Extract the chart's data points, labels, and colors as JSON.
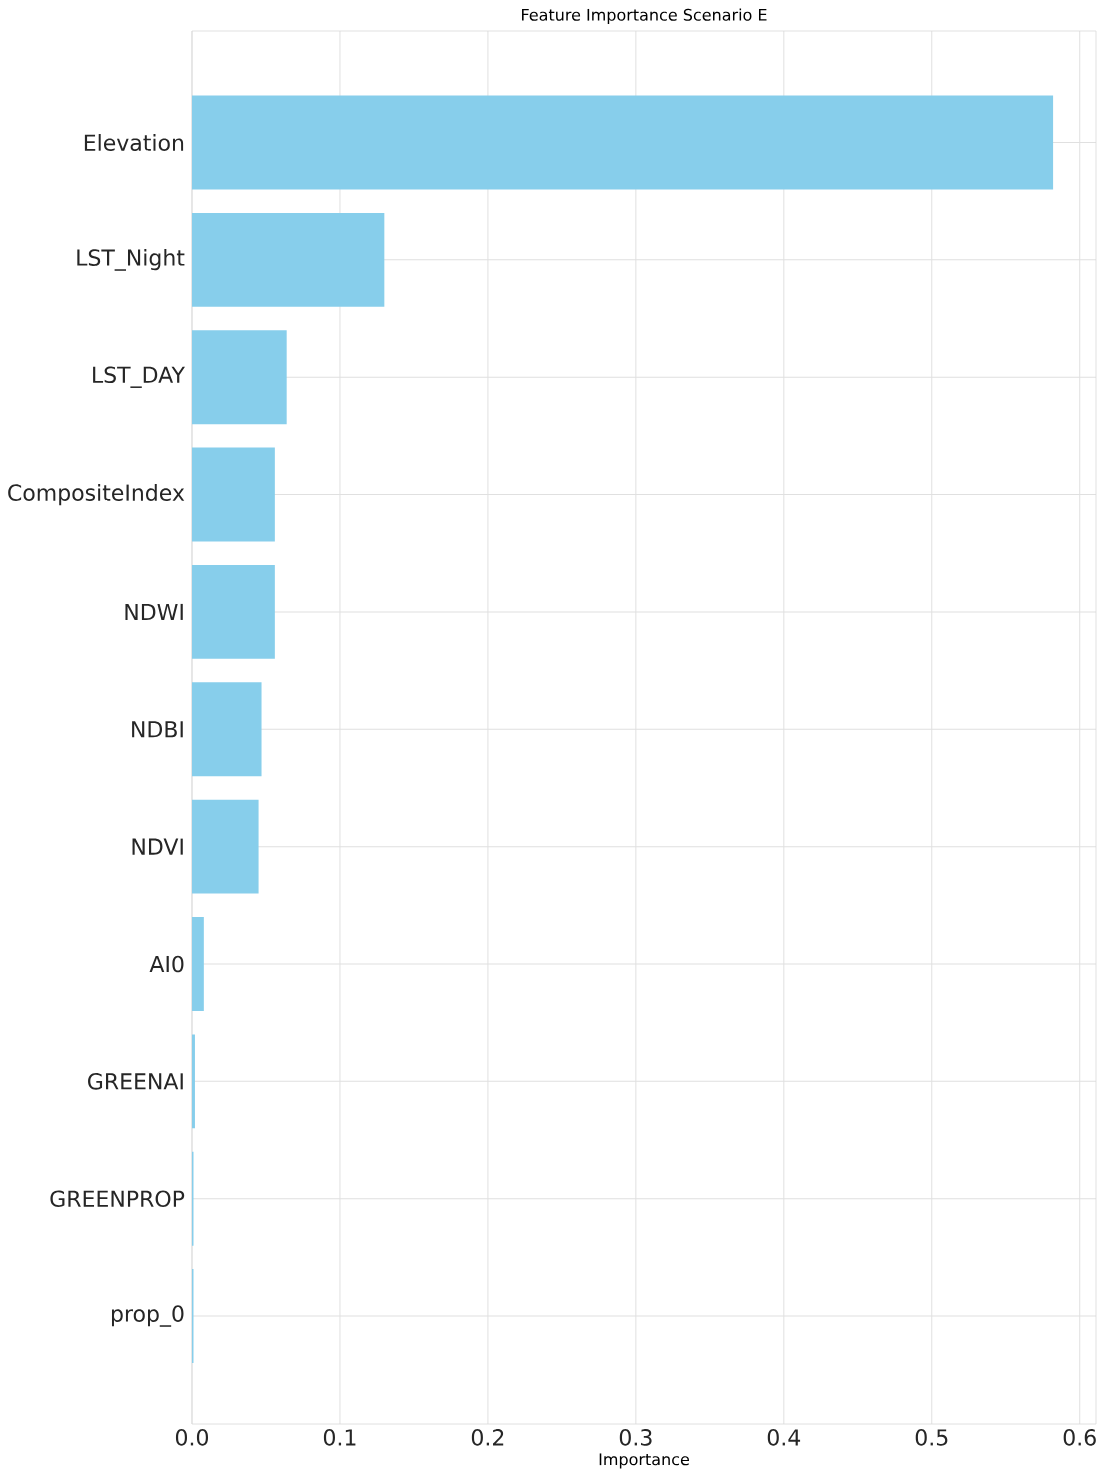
{
  "chart_data": {
    "type": "bar",
    "orientation": "horizontal",
    "title": "Feature Importance Scenario E",
    "xlabel": "Importance",
    "categories": [
      "Elevation",
      "LST_Night",
      "LST_DAY",
      "CompositeIndex",
      "NDWI",
      "NDBI",
      "NDVI",
      "AI0",
      "GREENAI",
      "GREENPROP",
      "prop_0"
    ],
    "values": [
      0.582,
      0.13,
      0.064,
      0.056,
      0.056,
      0.047,
      0.045,
      0.008,
      0.002,
      0.001,
      0.001
    ],
    "color": "#87ceeb",
    "xlim": [
      0,
      0.611
    ],
    "xticks": [
      {
        "value": 0,
        "label": "0.0"
      },
      0.1,
      0.2,
      0.3,
      0.4,
      0.5,
      0.6
    ],
    "grid": true
  }
}
